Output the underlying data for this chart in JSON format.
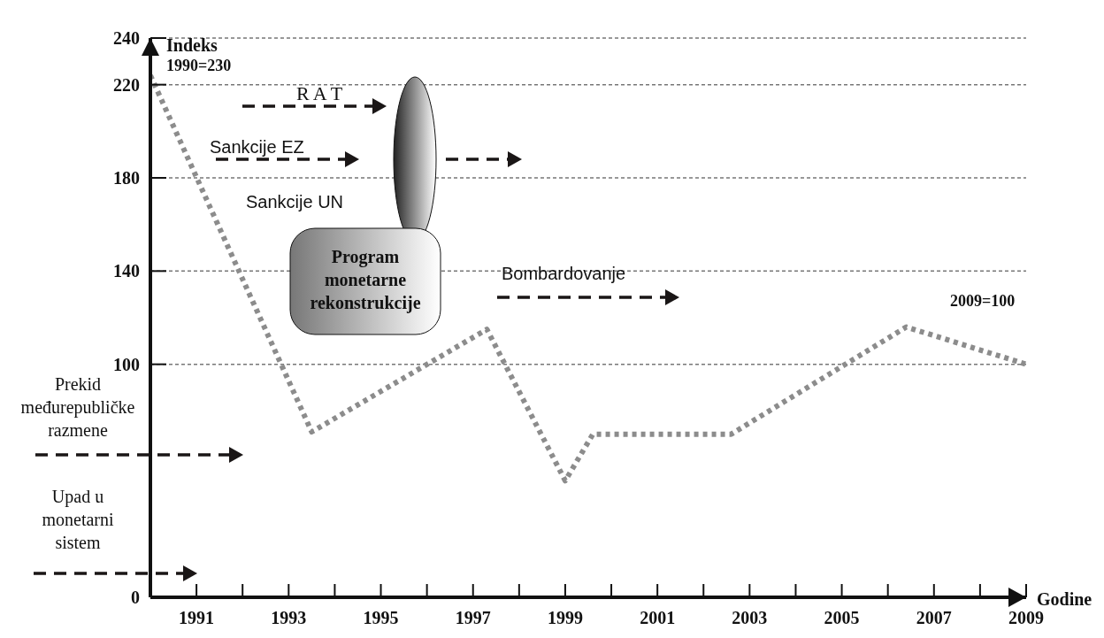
{
  "chart_data": {
    "type": "line",
    "ylabel": "Indeks",
    "xlabel": "Godine",
    "x": [
      1990,
      1993.5,
      1997.3,
      1999,
      1999.6,
      2002.6,
      2006.4,
      2009
    ],
    "series": [
      {
        "color": "#8c8c8c",
        "values": [
          224,
          71,
          115,
          50,
          70,
          70,
          116,
          100
        ]
      }
    ],
    "xlim": [
      1990,
      2009
    ],
    "xticks": [
      1991,
      {
        "value": 1992,
        "label": null
      },
      1993,
      {
        "value": 1994,
        "label": null
      },
      1995,
      {
        "value": 1996,
        "label": null
      },
      1997,
      {
        "value": 1998,
        "label": null
      },
      1999,
      {
        "value": 2000,
        "label": null
      },
      2001,
      {
        "value": 2002,
        "label": null
      },
      2003,
      {
        "value": 2004,
        "label": null
      },
      2005,
      {
        "value": 2006,
        "label": null
      },
      2007,
      {
        "value": 2008,
        "label": null
      },
      2009
    ],
    "ylim": [
      0,
      240
    ],
    "yticks": [
      0,
      100,
      140,
      180,
      220,
      240
    ],
    "grid": "y",
    "marker": "none",
    "line_style": "dotted",
    "annotations": [
      "1990=230",
      "R A T",
      "Sankcije EZ",
      "Sankcije UN",
      "Program monetarne rekonstrukcije",
      "Bombardovanje",
      "Prekid međurepubličke razmene",
      "Upad u monetarni sistem",
      "2009=100"
    ]
  }
}
